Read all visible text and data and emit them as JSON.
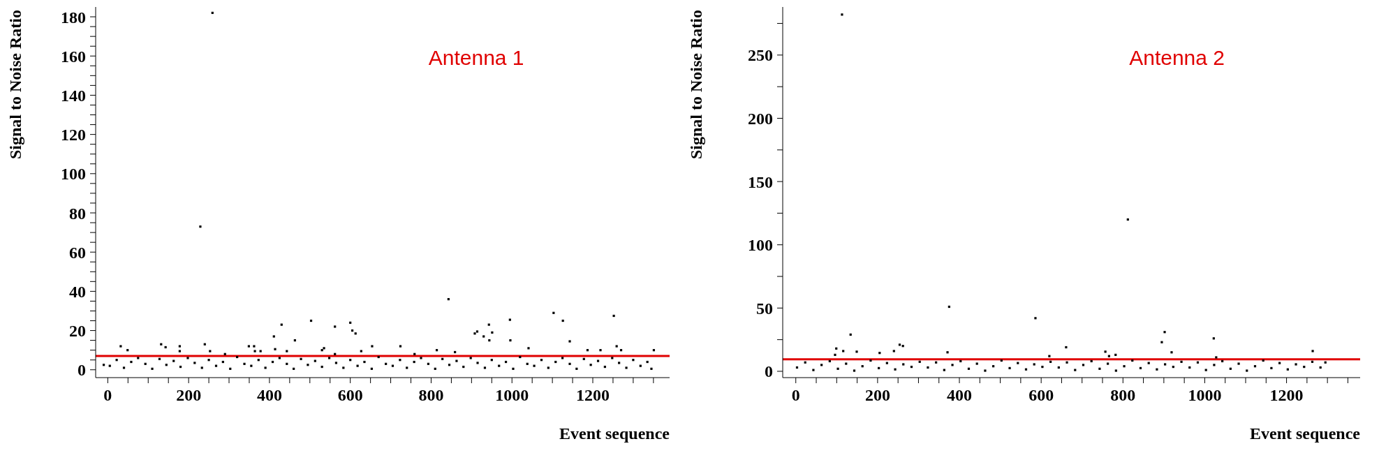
{
  "chart_data": [
    {
      "type": "scatter",
      "xlabel": "Event sequence",
      "ylabel": "Signal to Noise Ratio",
      "annotations": [
        "Antenna 1"
      ],
      "marker": "square",
      "color": "#000000",
      "x": [
        -10,
        259,
        229,
        843,
        503,
        430,
        600,
        605,
        613,
        562,
        411,
        463,
        908,
        914,
        930,
        943,
        944,
        951,
        995,
        996,
        1103,
        1126,
        1143,
        1252,
        1259,
        1270,
        32,
        49,
        132,
        143,
        178,
        178,
        240,
        253,
        290,
        349,
        362,
        364,
        378,
        414,
        443,
        530,
        535,
        562,
        627,
        654,
        724,
        759,
        814,
        859,
        1041,
        1187,
        1219,
        1351,
        5,
        22,
        40,
        58,
        75,
        93,
        110,
        128,
        145,
        163,
        180,
        198,
        215,
        233,
        250,
        268,
        285,
        303,
        320,
        338,
        355,
        373,
        390,
        408,
        425,
        443,
        460,
        478,
        495,
        513,
        530,
        548,
        565,
        583,
        600,
        618,
        635,
        653,
        670,
        688,
        705,
        723,
        740,
        758,
        775,
        793,
        810,
        828,
        845,
        863,
        880,
        898,
        915,
        933,
        950,
        968,
        985,
        1003,
        1020,
        1038,
        1055,
        1073,
        1090,
        1108,
        1125,
        1143,
        1160,
        1178,
        1195,
        1213,
        1230,
        1248,
        1265,
        1283,
        1300,
        1318,
        1335,
        1345
      ],
      "values": [
        2.5,
        182,
        73,
        36,
        25,
        23,
        24,
        20,
        18.5,
        22,
        17,
        15,
        18.5,
        19.5,
        17,
        23,
        15,
        19,
        25.5,
        15,
        29,
        25,
        14.5,
        27.5,
        12,
        10,
        12,
        10,
        13,
        11.5,
        12,
        9.5,
        13,
        9.5,
        8,
        12,
        12,
        9.5,
        9.5,
        10.5,
        9.5,
        10,
        11,
        8,
        9.5,
        12,
        12,
        8,
        10,
        9,
        11,
        10,
        10,
        10,
        2,
        5,
        1,
        4,
        6,
        3,
        0.5,
        5.5,
        2.5,
        4.5,
        1.5,
        6,
        3.5,
        1,
        5,
        2,
        4,
        0.5,
        6.5,
        3,
        2,
        5,
        1,
        4,
        6,
        3,
        0.5,
        5.5,
        2.5,
        4.5,
        1.5,
        6,
        3.5,
        1,
        5,
        2,
        4,
        0.5,
        6.5,
        3,
        2,
        5,
        1,
        4,
        6,
        3,
        0.5,
        5.5,
        2.5,
        4.5,
        1.5,
        6,
        3.5,
        1,
        5,
        2,
        4,
        0.5,
        6.5,
        3,
        2,
        5,
        1,
        4,
        6,
        3,
        0.5,
        5.5,
        2.5,
        4.5,
        1.5,
        6,
        3.5,
        1,
        5,
        2,
        4,
        0.5
      ],
      "xlim": [
        -30,
        1390
      ],
      "ylim": [
        -4,
        185
      ],
      "xticks": [
        0,
        {
          "value": 50,
          "label": null
        },
        {
          "value": 100,
          "label": null
        },
        {
          "value": 150,
          "label": null
        },
        200,
        {
          "value": 250,
          "label": null
        },
        {
          "value": 300,
          "label": null
        },
        {
          "value": 350,
          "label": null
        },
        400,
        {
          "value": 450,
          "label": null
        },
        {
          "value": 500,
          "label": null
        },
        {
          "value": 550,
          "label": null
        },
        600,
        {
          "value": 650,
          "label": null
        },
        {
          "value": 700,
          "label": null
        },
        {
          "value": 750,
          "label": null
        },
        800,
        {
          "value": 850,
          "label": null
        },
        {
          "value": 900,
          "label": null
        },
        {
          "value": 950,
          "label": null
        },
        1000,
        {
          "value": 1050,
          "label": null
        },
        {
          "value": 1100,
          "label": null
        },
        {
          "value": 1150,
          "label": null
        },
        1200,
        {
          "value": 1250,
          "label": null
        },
        {
          "value": 1300,
          "label": null
        },
        {
          "value": 1350,
          "label": null
        }
      ],
      "yticks": [
        0,
        {
          "value": 5,
          "label": null
        },
        {
          "value": 10,
          "label": null
        },
        {
          "value": 15,
          "label": null
        },
        20,
        {
          "value": 25,
          "label": null
        },
        {
          "value": 30,
          "label": null
        },
        {
          "value": 35,
          "label": null
        },
        40,
        {
          "value": 45,
          "label": null
        },
        {
          "value": 50,
          "label": null
        },
        {
          "value": 55,
          "label": null
        },
        60,
        {
          "value": 65,
          "label": null
        },
        {
          "value": 70,
          "label": null
        },
        {
          "value": 75,
          "label": null
        },
        80,
        {
          "value": 85,
          "label": null
        },
        {
          "value": 90,
          "label": null
        },
        {
          "value": 95,
          "label": null
        },
        100,
        {
          "value": 105,
          "label": null
        },
        {
          "value": 110,
          "label": null
        },
        {
          "value": 115,
          "label": null
        },
        120,
        {
          "value": 125,
          "label": null
        },
        {
          "value": 130,
          "label": null
        },
        {
          "value": 135,
          "label": null
        },
        140,
        {
          "value": 145,
          "label": null
        },
        {
          "value": 150,
          "label": null
        },
        {
          "value": 155,
          "label": null
        },
        160,
        {
          "value": 165,
          "label": null
        },
        {
          "value": 170,
          "label": null
        },
        {
          "value": 175,
          "label": null
        },
        180
      ],
      "ref_lines": [
        {
          "axis": "y",
          "value": 7,
          "color": "#e00000"
        }
      ]
    },
    {
      "type": "scatter",
      "xlabel": "Event sequence",
      "ylabel": "Signal to Noise Ratio",
      "annotations": [
        "Antenna 2"
      ],
      "marker": "square",
      "color": "#000000",
      "x": [
        113,
        812,
        375,
        586,
        134,
        902,
        895,
        1022,
        99,
        116,
        149,
        205,
        240,
        254,
        262,
        371,
        620,
        661,
        757,
        766,
        782,
        919,
        1028,
        1264,
        96,
        3,
        23,
        43,
        63,
        83,
        103,
        123,
        143,
        163,
        183,
        203,
        223,
        243,
        263,
        283,
        303,
        323,
        343,
        363,
        383,
        403,
        423,
        443,
        463,
        483,
        503,
        523,
        543,
        563,
        583,
        603,
        623,
        643,
        663,
        683,
        703,
        723,
        743,
        763,
        783,
        803,
        823,
        843,
        863,
        883,
        903,
        923,
        943,
        963,
        983,
        1003,
        1023,
        1043,
        1063,
        1083,
        1103,
        1123,
        1143,
        1163,
        1183,
        1203,
        1223,
        1243,
        1263,
        1283,
        1295
      ],
      "values": [
        282,
        120,
        51,
        42,
        29,
        31,
        23,
        26,
        18,
        16,
        15.5,
        14.5,
        16,
        21,
        20,
        15,
        12,
        19,
        15.5,
        12,
        13,
        15,
        11,
        16,
        13,
        3,
        7,
        1,
        5,
        8,
        2,
        6,
        0.5,
        4,
        8.5,
        2.5,
        6.5,
        1.5,
        5.5,
        3.5,
        7.5,
        3,
        7,
        1,
        5,
        8,
        2,
        6,
        0.5,
        4,
        8.5,
        2.5,
        6.5,
        1.5,
        5.5,
        3.5,
        7.5,
        3,
        7,
        1,
        5,
        8,
        2,
        6,
        0.5,
        4,
        8.5,
        2.5,
        6.5,
        1.5,
        5.5,
        3.5,
        7.5,
        3,
        7,
        1,
        5,
        8,
        2,
        6,
        0.5,
        4,
        8.5,
        2.5,
        6.5,
        1.5,
        5.5,
        3.5,
        7.5,
        3,
        7
      ],
      "xlim": [
        -32,
        1380
      ],
      "ylim": [
        -5,
        288
      ],
      "xticks": [
        0,
        {
          "value": 50,
          "label": null
        },
        {
          "value": 100,
          "label": null
        },
        {
          "value": 150,
          "label": null
        },
        200,
        {
          "value": 250,
          "label": null
        },
        {
          "value": 300,
          "label": null
        },
        {
          "value": 350,
          "label": null
        },
        400,
        {
          "value": 450,
          "label": null
        },
        {
          "value": 500,
          "label": null
        },
        {
          "value": 550,
          "label": null
        },
        600,
        {
          "value": 650,
          "label": null
        },
        {
          "value": 700,
          "label": null
        },
        {
          "value": 750,
          "label": null
        },
        800,
        {
          "value": 850,
          "label": null
        },
        {
          "value": 900,
          "label": null
        },
        {
          "value": 950,
          "label": null
        },
        1000,
        {
          "value": 1050,
          "label": null
        },
        {
          "value": 1100,
          "label": null
        },
        {
          "value": 1150,
          "label": null
        },
        1200,
        {
          "value": 1250,
          "label": null
        },
        {
          "value": 1300,
          "label": null
        },
        {
          "value": 1350,
          "label": null
        }
      ],
      "yticks": [
        0,
        {
          "value": 25,
          "label": null
        },
        50,
        {
          "value": 75,
          "label": null
        },
        100,
        {
          "value": 125,
          "label": null
        },
        150,
        {
          "value": 175,
          "label": null
        },
        200,
        {
          "value": 225,
          "label": null
        },
        250,
        {
          "value": 275,
          "label": null
        }
      ],
      "ref_lines": [
        {
          "axis": "y",
          "value": 9.5,
          "color": "#e00000"
        }
      ]
    }
  ]
}
